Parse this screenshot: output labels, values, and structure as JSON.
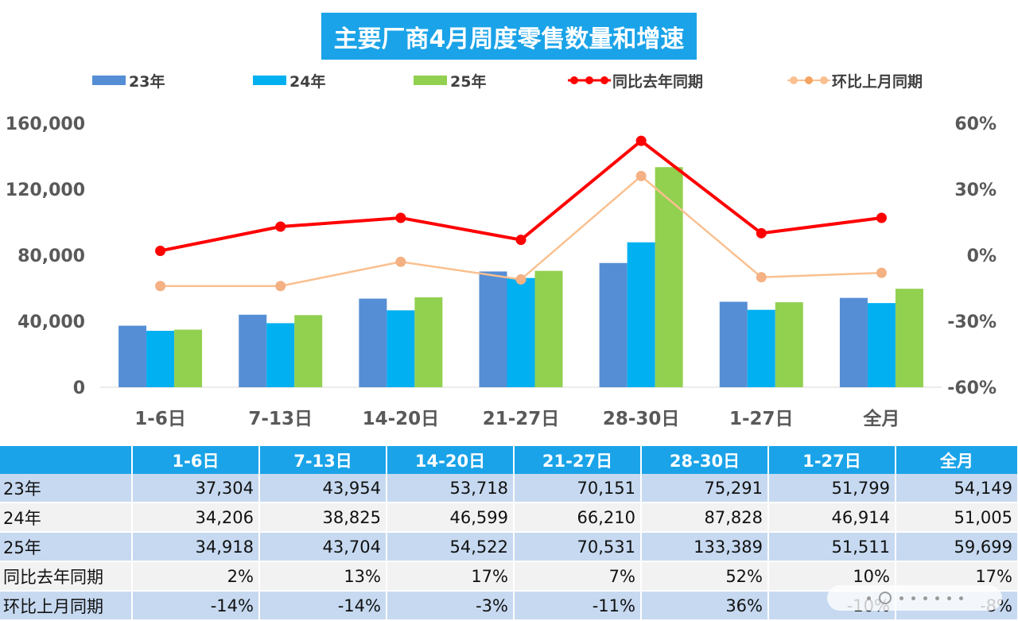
{
  "chart_data": {
    "type": "bar",
    "title": "主要厂商4月周度零售数量和增速",
    "categories": [
      "1-6日",
      "7-13日",
      "14-20日",
      "21-27日",
      "28-30日",
      "1-27日",
      "全月"
    ],
    "series": [
      {
        "name": "23年",
        "type": "bar",
        "axis": "left",
        "color": "#558ed5",
        "values": [
          37304,
          43954,
          53718,
          70151,
          75291,
          51799,
          54149
        ]
      },
      {
        "name": "24年",
        "type": "bar",
        "axis": "left",
        "color": "#00b0f0",
        "values": [
          34206,
          38825,
          46599,
          66210,
          87828,
          46914,
          51005
        ]
      },
      {
        "name": "25年",
        "type": "bar",
        "axis": "left",
        "color": "#92d050",
        "values": [
          34918,
          43704,
          54522,
          70531,
          133389,
          51511,
          59699
        ]
      },
      {
        "name": "同比去年同期",
        "type": "line",
        "axis": "right",
        "color": "#ff0000",
        "values": [
          2,
          13,
          17,
          7,
          52,
          10,
          17
        ]
      },
      {
        "name": "环比上月同期",
        "type": "line",
        "axis": "right",
        "color": "#fac090",
        "values": [
          -14,
          -14,
          -3,
          -11,
          36,
          -10,
          -8
        ]
      }
    ],
    "y_left": {
      "min": 0,
      "max": 160000,
      "ticks": [
        "0",
        "40,000",
        "80,000",
        "120,000",
        "160,000"
      ]
    },
    "y_right": {
      "min": -60,
      "max": 60,
      "ticks": [
        "-60%",
        "-30%",
        "0%",
        "30%",
        "60%"
      ]
    },
    "grid": false,
    "legend": "top"
  },
  "table": {
    "header": [
      "",
      "1-6日",
      "7-13日",
      "14-20日",
      "21-27日",
      "28-30日",
      "1-27日",
      "全月"
    ],
    "rows": [
      {
        "label": "23年",
        "cells": [
          "37,304",
          "43,954",
          "53,718",
          "70,151",
          "75,291",
          "51,799",
          "54,149"
        ]
      },
      {
        "label": "24年",
        "cells": [
          "34,206",
          "38,825",
          "46,599",
          "66,210",
          "87,828",
          "46,914",
          "51,005"
        ]
      },
      {
        "label": "25年",
        "cells": [
          "34,918",
          "43,704",
          "54,522",
          "70,531",
          "133,389",
          "51,511",
          "59,699"
        ]
      },
      {
        "label": "同比去年同期",
        "cells": [
          "2%",
          "13%",
          "17%",
          "7%",
          "52%",
          "10%",
          "17%"
        ]
      },
      {
        "label": "环比上月同期",
        "cells": [
          "-14%",
          "-14%",
          "-3%",
          "-11%",
          "36%",
          "-10%",
          "-8%"
        ]
      }
    ]
  }
}
